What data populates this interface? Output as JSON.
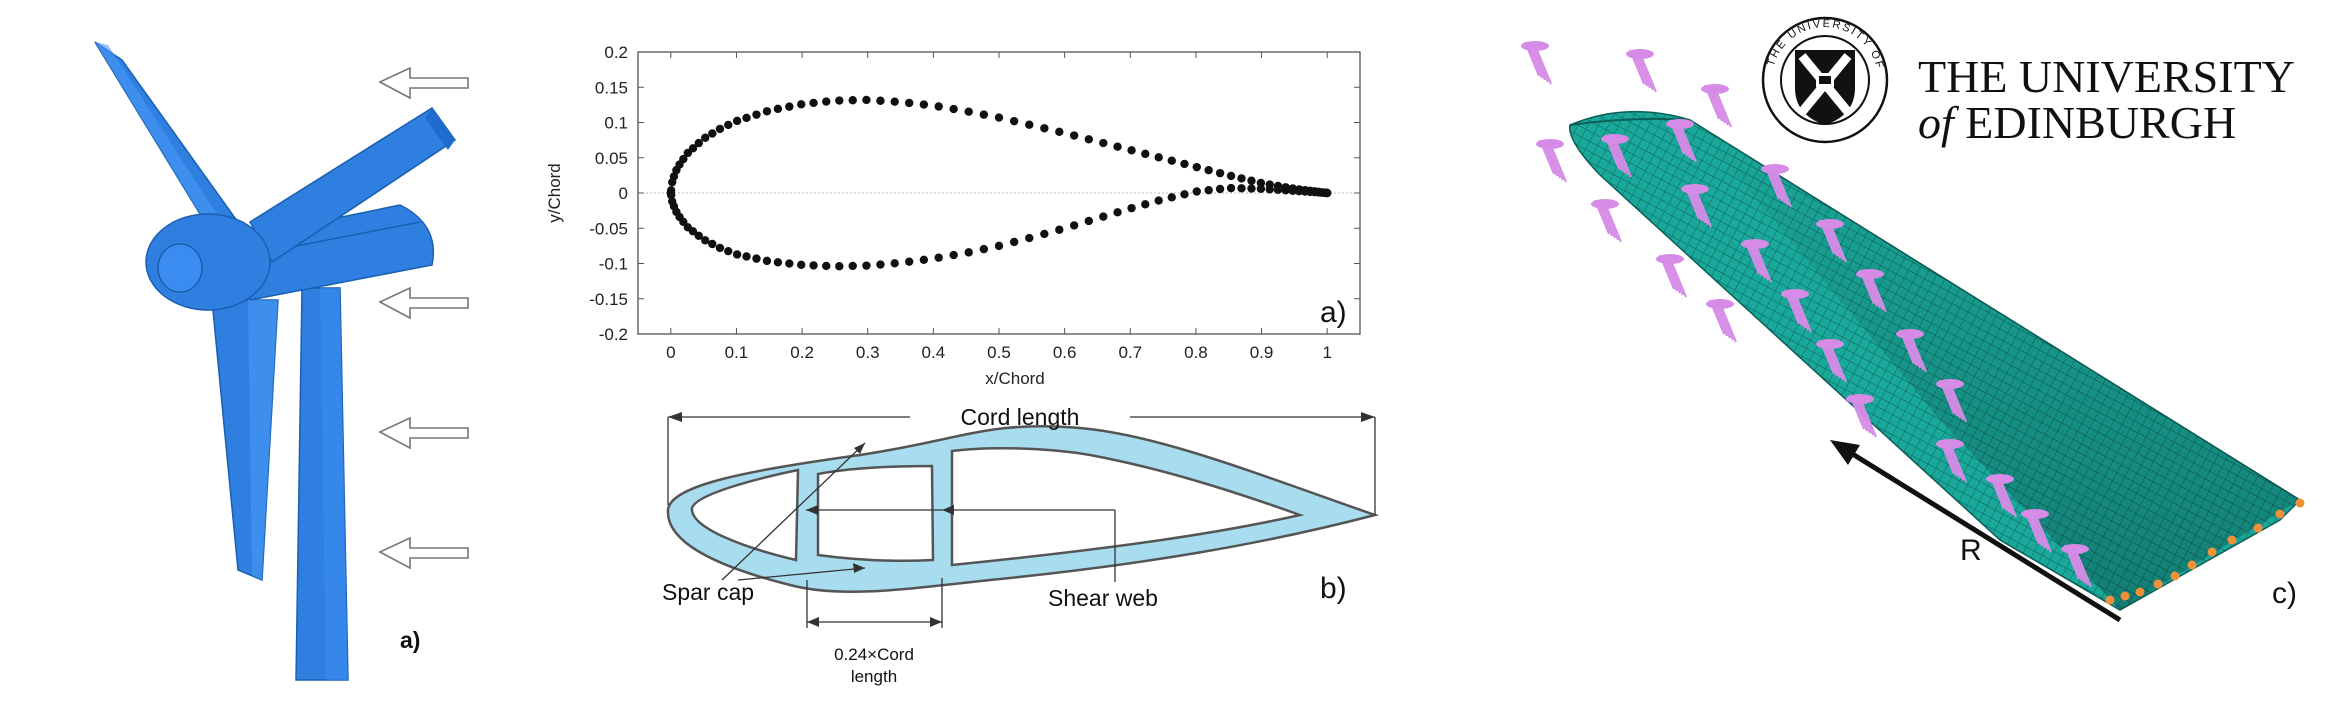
{
  "turbine": {
    "panel_tag": "a)"
  },
  "airfoil": {
    "panel_tag": "a)",
    "xlabel": "x/Chord",
    "ylabel": "y/Chord",
    "x_ticks": [
      "0",
      "0.1",
      "0.2",
      "0.3",
      "0.4",
      "0.5",
      "0.6",
      "0.7",
      "0.8",
      "0.9",
      "1"
    ],
    "y_ticks": [
      "0.2",
      "0.15",
      "0.1",
      "0.05",
      "0",
      "-0.05",
      "-0.1",
      "-0.15",
      "-0.2"
    ]
  },
  "chart_data": {
    "type": "scatter",
    "title": "",
    "xlabel": "x/Chord",
    "ylabel": "y/Chord",
    "xlim": [
      -0.05,
      1.05
    ],
    "ylim": [
      -0.2,
      0.2
    ],
    "grid": false,
    "series": [
      {
        "x": [
          0,
          0.0025,
          0.01,
          0.025,
          0.05,
          0.075,
          0.1,
          0.15,
          0.2,
          0.25,
          0.3,
          0.35,
          0.4,
          0.45,
          0.5,
          0.55,
          0.6,
          0.65,
          0.7,
          0.75,
          0.8,
          0.85,
          0.9,
          0.95,
          1.0
        ],
        "y_upper": [
          0,
          0.018,
          0.036,
          0.056,
          0.077,
          0.091,
          0.102,
          0.117,
          0.126,
          0.131,
          0.132,
          0.129,
          0.124,
          0.116,
          0.107,
          0.096,
          0.085,
          0.073,
          0.061,
          0.049,
          0.037,
          0.025,
          0.014,
          0.006,
          0
        ],
        "y_lower": [
          0,
          -0.014,
          -0.03,
          -0.048,
          -0.066,
          -0.078,
          -0.087,
          -0.097,
          -0.102,
          -0.104,
          -0.103,
          -0.099,
          -0.093,
          -0.085,
          -0.075,
          -0.063,
          -0.05,
          -0.036,
          -0.022,
          -0.009,
          0.002,
          0.007,
          0.006,
          0.003,
          0
        ]
      }
    ]
  },
  "section": {
    "panel_tag": "b)",
    "cord_length_label": "Cord length",
    "spar_cap_label": "Spar cap",
    "shear_web_label": "Shear web",
    "width_label_line1": "0.24×Cord",
    "width_label_line2": "length"
  },
  "fem": {
    "panel_tag": "c)",
    "radius_label": "R"
  },
  "university": {
    "line1": "THE UNIVERSITY",
    "line2_italic": "of",
    "line2_rest": " EDINBURGH",
    "seal_text": "THE UNIVERSITY OF EDINBURGH"
  },
  "colors": {
    "turbine_blue": "#2f7fe0",
    "section_fill": "#a8ddf0",
    "mesh_teal": "#1aa89a",
    "load_pink": "#d68be6",
    "boundary_orange": "#f0913a"
  }
}
